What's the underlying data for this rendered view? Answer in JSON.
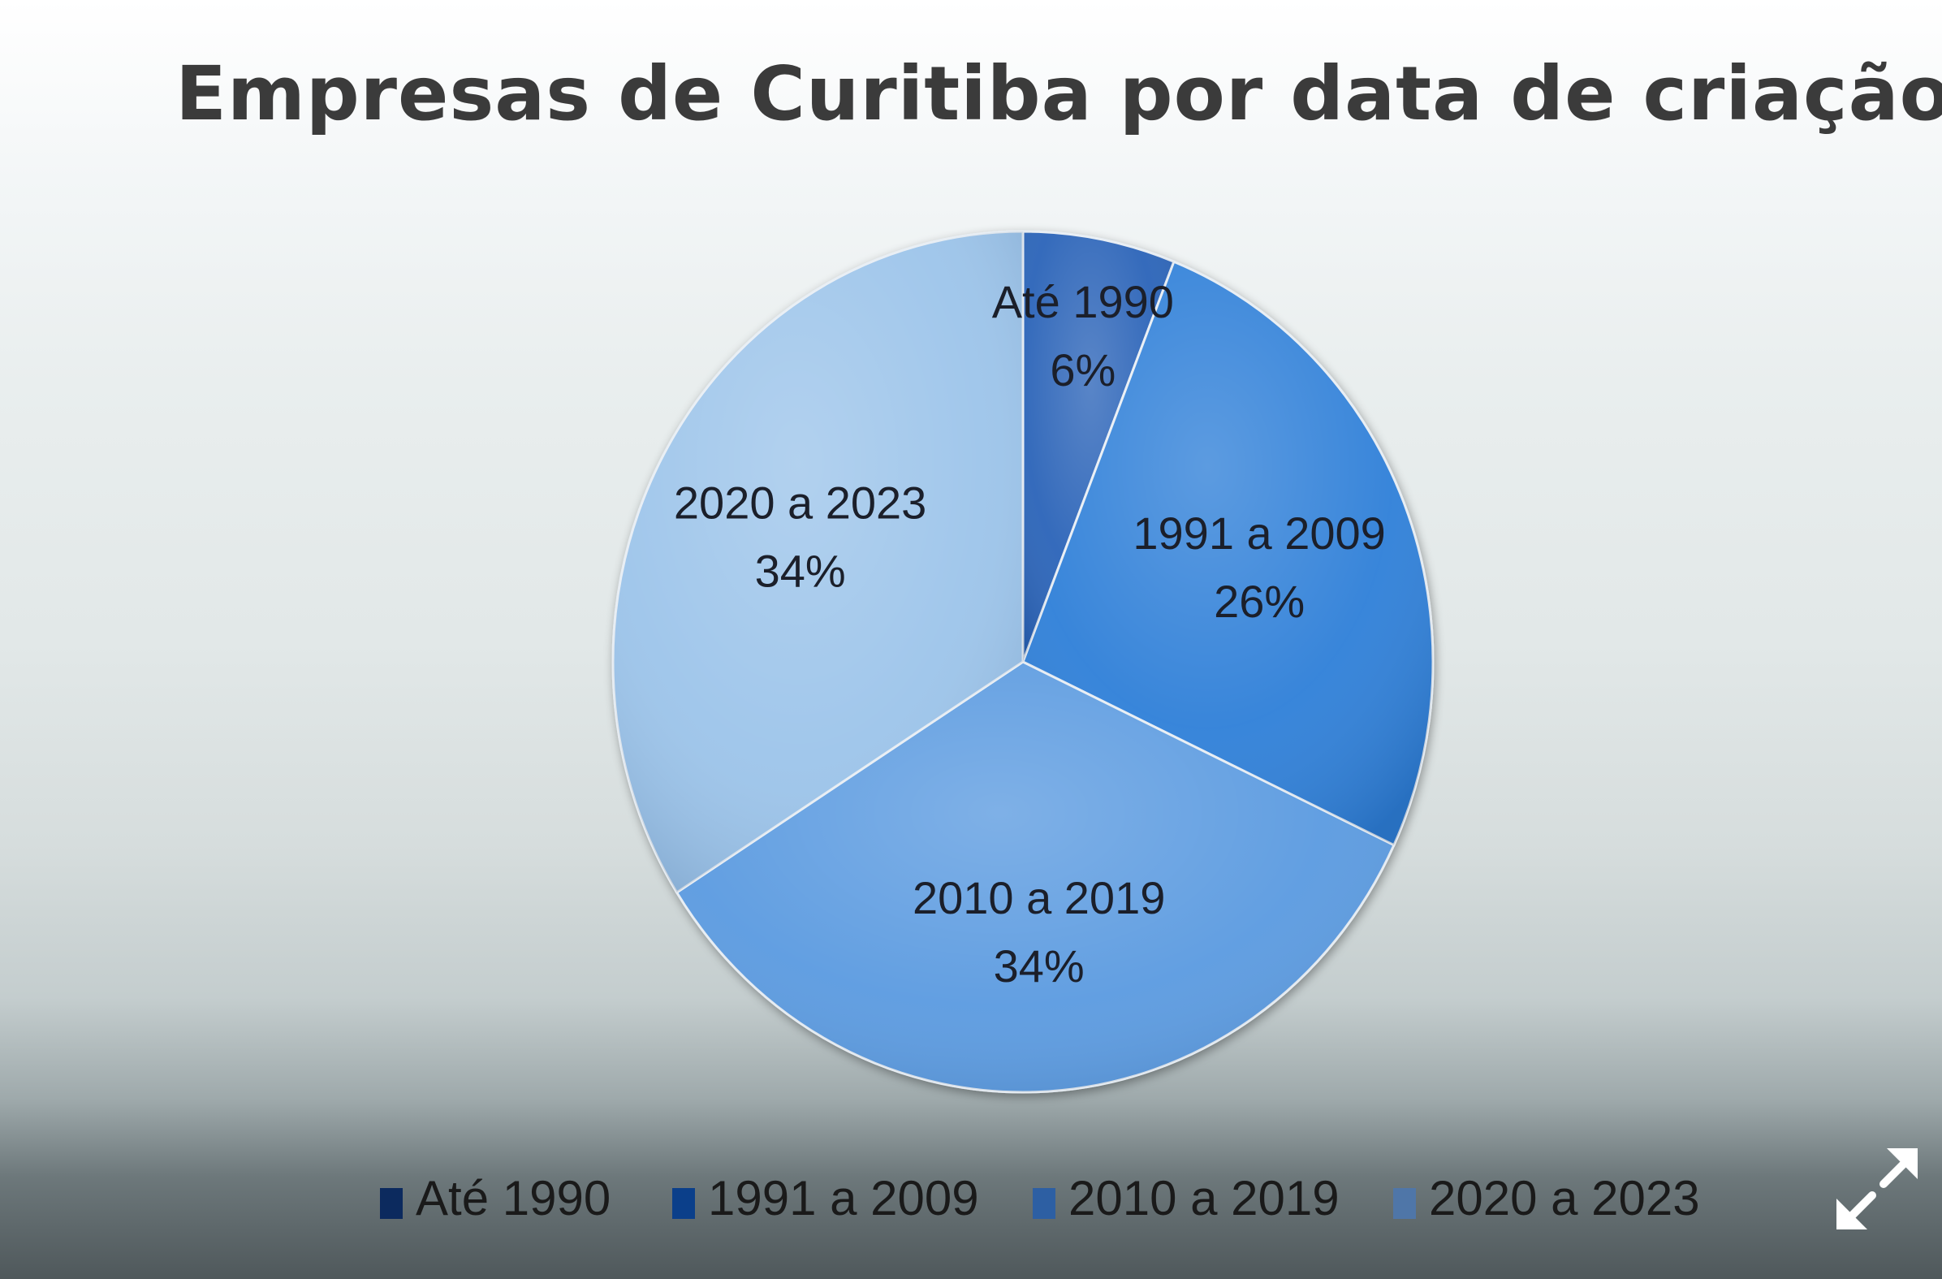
{
  "chart_data": {
    "type": "pie",
    "title": "Empresas de Curitiba por data de criação",
    "slices": [
      {
        "label": "Até 1990",
        "value": 6,
        "value_label": "6%",
        "color": "#2b63b8"
      },
      {
        "label": "1991 a 2009",
        "value": 26,
        "value_label": "26%",
        "color": "#2f7fd8"
      },
      {
        "label": "2010 a 2019",
        "value": 34,
        "value_label": "34%",
        "color": "#5a9ae0"
      },
      {
        "label": "2020 a 2023",
        "value": 34,
        "value_label": "34%",
        "color": "#9cc4ea"
      }
    ],
    "legend": {
      "position": "bottom",
      "items": [
        {
          "label": "Até 1990",
          "color": "#0c2a5e"
        },
        {
          "label": "1991 a 2009",
          "color": "#0b3f8a"
        },
        {
          "label": "2010 a 2019",
          "color": "#2d5fa3"
        },
        {
          "label": "2020 a 2023",
          "color": "#4f76a8"
        }
      ]
    }
  },
  "ui": {
    "expand_icon": "expand-arrows-icon"
  }
}
